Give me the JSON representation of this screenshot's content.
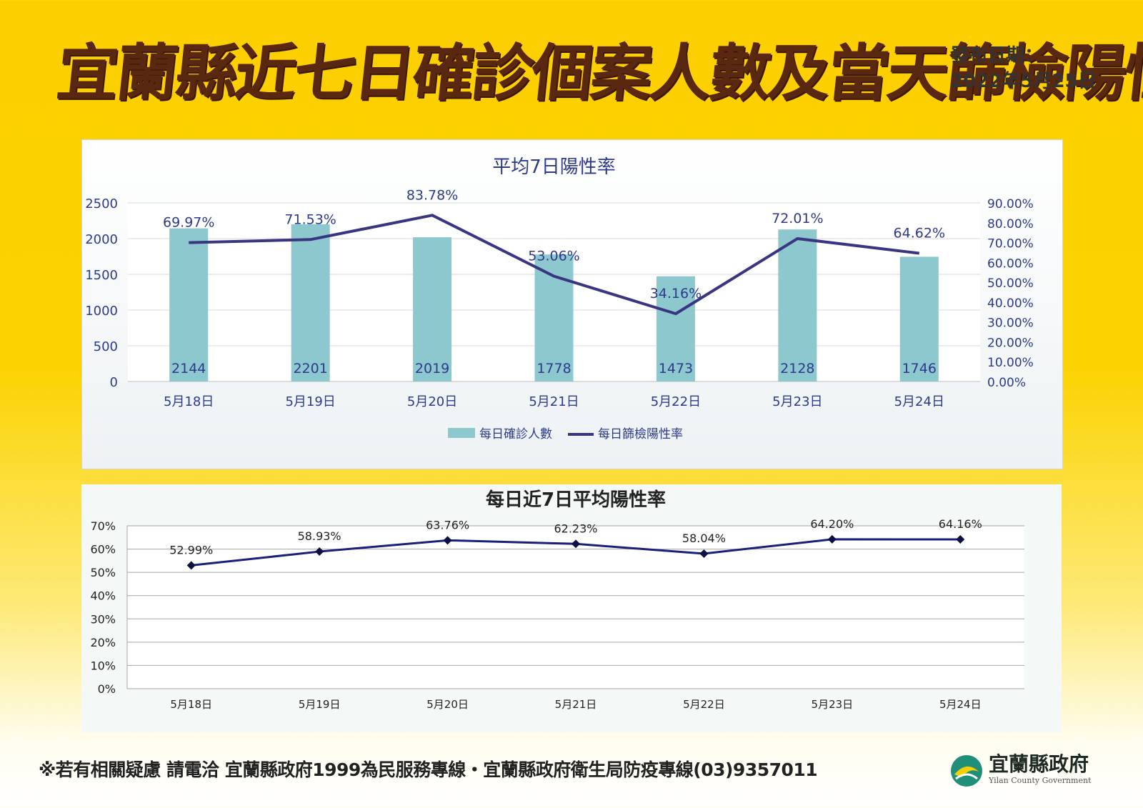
{
  "header": {
    "title": "宜蘭縣近七日確診個案人數及當天篩檢陽性率",
    "date_label": "發布日期：",
    "date_value": "2022年5月25日"
  },
  "chart_data": [
    {
      "type": "bar+line",
      "title": "平均7日陽性率",
      "categories": [
        "5月18日",
        "5月19日",
        "5月20日",
        "5月21日",
        "5月22日",
        "5月23日",
        "5月24日"
      ],
      "series": [
        {
          "name": "每日確診人數",
          "type": "bar",
          "axis": "left",
          "values": [
            2144,
            2201,
            2019,
            1778,
            1473,
            2128,
            1746
          ],
          "color": "#8ec8cf"
        },
        {
          "name": "每日篩檢陽性率",
          "type": "line",
          "axis": "right",
          "values": [
            69.97,
            71.53,
            83.78,
            53.06,
            34.16,
            72.01,
            64.62
          ],
          "labels": [
            "69.97%",
            "71.53%",
            "83.78%",
            "53.06%",
            "34.16%",
            "72.01%",
            "64.62%"
          ],
          "color": "#3a3580"
        }
      ],
      "ylim_left": [
        0,
        2500
      ],
      "yticks_left": [
        "0",
        "500",
        "1000",
        "1500",
        "2000",
        "2500"
      ],
      "ylim_right": [
        0,
        90
      ],
      "yticks_right": [
        "0.00%",
        "10.00%",
        "20.00%",
        "30.00%",
        "40.00%",
        "50.00%",
        "60.00%",
        "70.00%",
        "80.00%",
        "90.00%"
      ],
      "legend": "bottom",
      "grid": true
    },
    {
      "type": "line",
      "title": "每日近7日平均陽性率",
      "categories": [
        "5月18日",
        "5月19日",
        "5月20日",
        "5月21日",
        "5月22日",
        "5月23日",
        "5月24日"
      ],
      "series": [
        {
          "type": "line",
          "values": [
            52.99,
            58.93,
            63.76,
            62.23,
            58.04,
            64.2,
            64.16
          ],
          "labels": [
            "52.99%",
            "58.93%",
            "63.76%",
            "62.23%",
            "58.04%",
            "64.20%",
            "64.16%"
          ],
          "color": "#1a1f7a"
        }
      ],
      "ylim": [
        0,
        70
      ],
      "yticks": [
        "0%",
        "10%",
        "20%",
        "30%",
        "40%",
        "50%",
        "60%",
        "70%"
      ],
      "grid": true
    }
  ],
  "footer": {
    "text": "※若有相關疑慮 請電洽  宜蘭縣政府1999為民服務專線・宜蘭縣政府衛生局防疫專線(03)9357011"
  },
  "logo": {
    "name": "宜蘭縣政府",
    "subtitle": "Yilan County Government",
    "icon": "yilan-county-emblem-icon"
  }
}
